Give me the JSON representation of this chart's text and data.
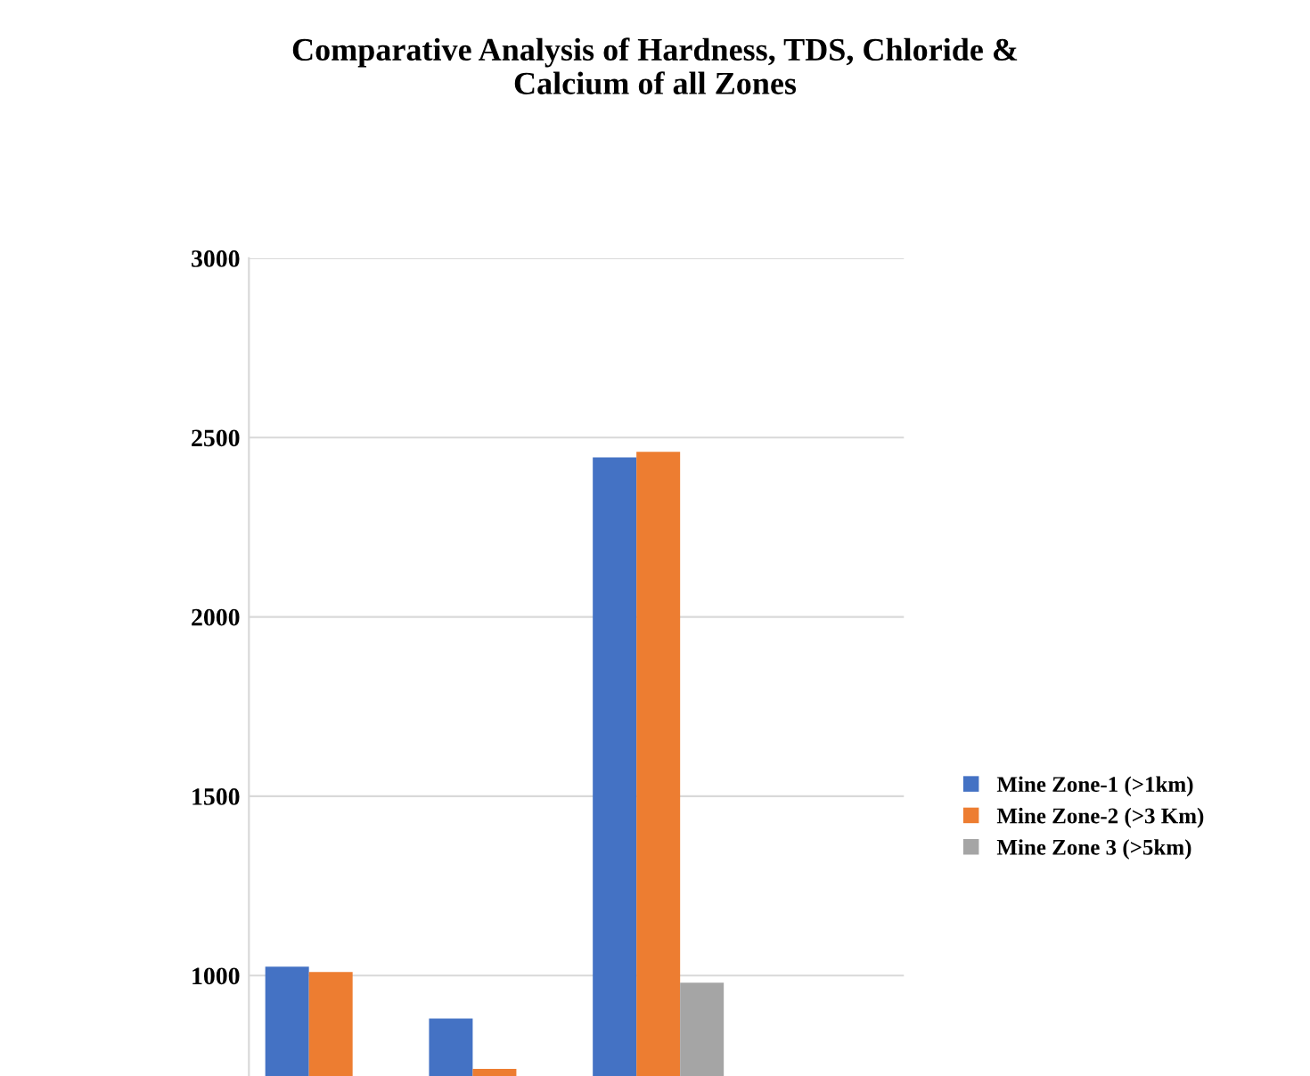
{
  "chart_data": {
    "type": "bar",
    "title": "Comparative Analysis of Hardness, TDS, Chloride &\nCalcium of all Zones",
    "categories": [
      null,
      null,
      null,
      null
    ],
    "series": [
      {
        "name": "Mine Zone-1 (>1km)",
        "color": "#4472c4",
        "values": [
          1025,
          880,
          2445,
          null
        ]
      },
      {
        "name": "Mine Zone-2 (>3 Km)",
        "color": "#ed7d31",
        "values": [
          1010,
          740,
          2460,
          null
        ]
      },
      {
        "name": "Mine Zone 3 (>5km)",
        "color": "#a5a5a5",
        "values": [
          null,
          null,
          980,
          null
        ]
      }
    ],
    "ylim": [
      720,
      3000
    ],
    "yticks": [
      1000,
      1500,
      2000,
      2500,
      3000
    ],
    "grid": "y",
    "legend": "right"
  }
}
